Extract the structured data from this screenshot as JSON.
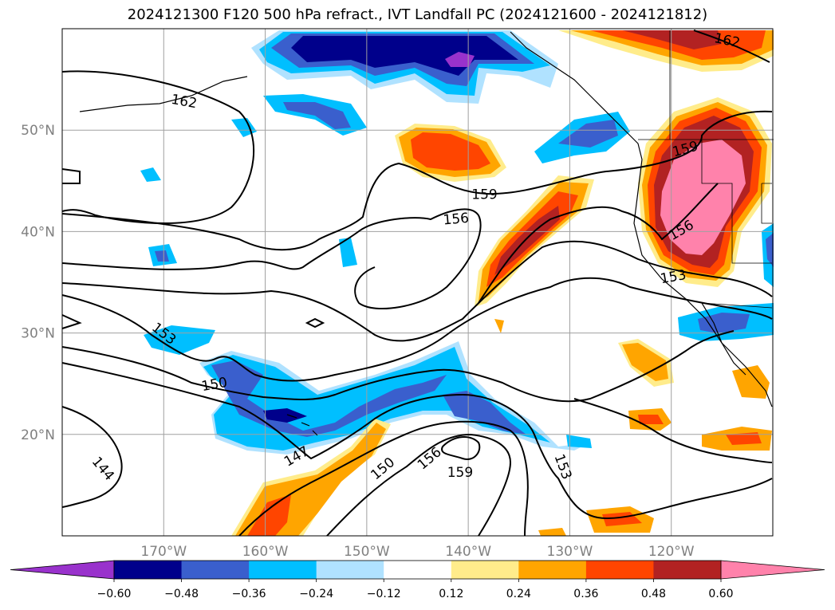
{
  "title": "2024121300 F120 500 hPa refract., IVT Landfall PC (2024121600 - 2024121812)",
  "map": {
    "lon_range": [
      -180,
      -110
    ],
    "lat_range": [
      10,
      60
    ],
    "lon_ticks": [
      {
        "lon": -170,
        "label": "170°W"
      },
      {
        "lon": -160,
        "label": "160°W"
      },
      {
        "lon": -150,
        "label": "150°W"
      },
      {
        "lon": -140,
        "label": "140°W"
      },
      {
        "lon": -130,
        "label": "130°W"
      },
      {
        "lon": -120,
        "label": "120°W"
      }
    ],
    "lat_ticks": [
      {
        "lat": 20,
        "label": "20°N"
      },
      {
        "lat": 30,
        "label": "30°N"
      },
      {
        "lat": 40,
        "label": "40°N"
      },
      {
        "lat": 50,
        "label": "50°N"
      }
    ],
    "gridlines": true
  },
  "colorbar": {
    "colors": [
      "#9932cc",
      "#00008b",
      "#3a5fcd",
      "#00bfff",
      "#b0e2ff",
      "#ffffff",
      "#ffec8b",
      "#ffa500",
      "#ff4500",
      "#b22222",
      "#ff82ab"
    ],
    "ticks": [
      "−0.60",
      "−0.48",
      "−0.36",
      "−0.24",
      "−0.12",
      "0.12",
      "0.24",
      "0.36",
      "0.48",
      "0.60"
    ],
    "extend": "both"
  },
  "contour_labels": [
    {
      "text": "162",
      "lon": -168,
      "lat": 52.8,
      "rot": 10
    },
    {
      "text": "162",
      "lon": -114.5,
      "lat": 58.8,
      "rot": 12
    },
    {
      "text": "159",
      "lon": -118.6,
      "lat": 48.1,
      "rot": -15
    },
    {
      "text": "159",
      "lon": -138.4,
      "lat": 43.6,
      "rot": 0
    },
    {
      "text": "156",
      "lon": -141.2,
      "lat": 41.2,
      "rot": -5
    },
    {
      "text": "156",
      "lon": -119,
      "lat": 40.1,
      "rot": -30
    },
    {
      "text": "153",
      "lon": -119.8,
      "lat": 35.5,
      "rot": -10
    },
    {
      "text": "153",
      "lon": -170,
      "lat": 29.9,
      "rot": 38
    },
    {
      "text": "150",
      "lon": -165,
      "lat": 24.9,
      "rot": -10
    },
    {
      "text": "147",
      "lon": -156.9,
      "lat": 17.8,
      "rot": -30
    },
    {
      "text": "150",
      "lon": -148.4,
      "lat": 16.6,
      "rot": -40
    },
    {
      "text": "156",
      "lon": -143.8,
      "lat": 17.6,
      "rot": -40
    },
    {
      "text": "159",
      "lon": -140.8,
      "lat": 16.2,
      "rot": 0
    },
    {
      "text": "153",
      "lon": -130.7,
      "lat": 16.8,
      "rot": 70
    },
    {
      "text": "144",
      "lon": -176,
      "lat": 16.6,
      "rot": 50
    }
  ]
}
